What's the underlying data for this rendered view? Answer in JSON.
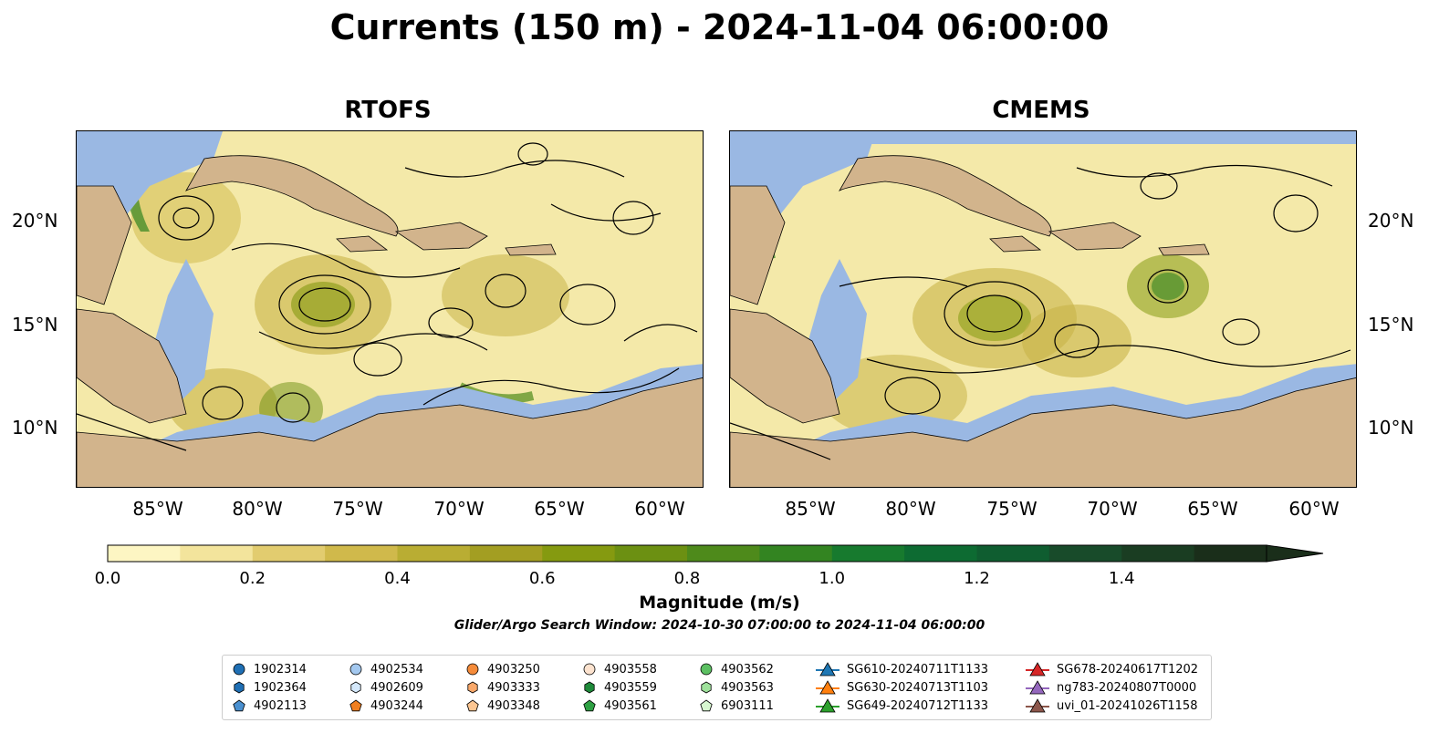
{
  "title": "Currents (150 m) - 2024-11-04 06:00:00",
  "panels": [
    {
      "title": "RTOFS"
    },
    {
      "title": "CMEMS"
    }
  ],
  "lat_ticks": [
    "20°N",
    "15°N",
    "10°N"
  ],
  "lon_ticks": [
    "85°W",
    "80°W",
    "75°W",
    "70°W",
    "65°W",
    "60°W"
  ],
  "colorbar": {
    "label": "Magnitude (m/s)",
    "ticks": [
      "0.0",
      "0.2",
      "0.4",
      "0.6",
      "0.8",
      "1.0",
      "1.2",
      "1.4"
    ],
    "colors": [
      "#fdf6c3",
      "#f3e49c",
      "#e2cc6f",
      "#d0b94b",
      "#b9ad33",
      "#a39e22",
      "#859a10",
      "#6c9012",
      "#4e8a1b",
      "#338421",
      "#177a2e",
      "#0d6b32",
      "#0f5d30",
      "#184b2a",
      "#1a3d22",
      "#1a2e1a"
    ],
    "land_color": "#d2b48c",
    "shallow_color": "#9ab8e3"
  },
  "search_window": "Glider/Argo Search Window: 2024-10-30 07:00:00 to 2024-11-04 06:00:00",
  "legend": [
    {
      "label": "1902314",
      "marker": "circle",
      "color": "#1f6fb4"
    },
    {
      "label": "1902364",
      "marker": "hexagon",
      "color": "#1f6fb4"
    },
    {
      "label": "4902113",
      "marker": "pentagon",
      "color": "#4a90d0"
    },
    {
      "label": "4902534",
      "marker": "circle",
      "color": "#a3c8ef"
    },
    {
      "label": "4902609",
      "marker": "hexagon",
      "color": "#d4e8fb"
    },
    {
      "label": "4903244",
      "marker": "pentagon",
      "color": "#f07f20"
    },
    {
      "label": "4903250",
      "marker": "circle",
      "color": "#f58b3a"
    },
    {
      "label": "4903333",
      "marker": "hexagon",
      "color": "#f9a86a"
    },
    {
      "label": "4903348",
      "marker": "pentagon",
      "color": "#fcc692"
    },
    {
      "label": "4903558",
      "marker": "circle",
      "color": "#fde3cf"
    },
    {
      "label": "4903559",
      "marker": "hexagon",
      "color": "#1f8a3a"
    },
    {
      "label": "4903561",
      "marker": "pentagon",
      "color": "#2ea043"
    },
    {
      "label": "4903562",
      "marker": "circle",
      "color": "#5cc062"
    },
    {
      "label": "4903563",
      "marker": "hexagon",
      "color": "#9ee19b"
    },
    {
      "label": "6903111",
      "marker": "pentagon",
      "color": "#d7f7d0"
    },
    {
      "label": "SG610-20240711T1133",
      "marker": "triangle-line",
      "color": "#1f77b4"
    },
    {
      "label": "SG630-20240713T1103",
      "marker": "triangle-line",
      "color": "#ff7f0e"
    },
    {
      "label": "SG649-20240712T1133",
      "marker": "triangle-line",
      "color": "#2ca02c"
    },
    {
      "label": "SG678-20240617T1202",
      "marker": "triangle-line",
      "color": "#d62728"
    },
    {
      "label": "ng783-20240807T0000",
      "marker": "triangle-line",
      "color": "#9467bd"
    },
    {
      "label": "uvi_01-20241026T1158",
      "marker": "triangle-line",
      "color": "#8c564b"
    }
  ]
}
